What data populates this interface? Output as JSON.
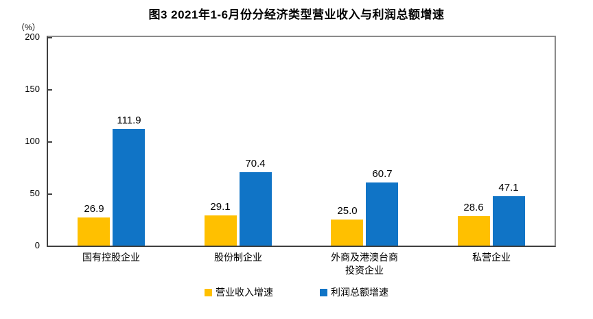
{
  "figure": {
    "title": "图3 2021年1-6月份分经济类型营业收入与利润总额增速",
    "y_unit": "（%）"
  },
  "chart_data": {
    "type": "bar",
    "title": "图3 2021年1-6月份分经济类型营业收入与利润总额增速",
    "ylabel": "（%）",
    "ylim": [
      0,
      200
    ],
    "yticks": [
      0,
      50,
      100,
      150,
      200
    ],
    "grid": false,
    "legend_position": "bottom",
    "categories": [
      "国有控股企业",
      "股份制企业",
      "外商及港澳台商\n投资企业",
      "私营企业"
    ],
    "series": [
      {
        "name": "营业收入增速",
        "color": "#FFC000",
        "values": [
          26.9,
          29.1,
          25.0,
          28.6
        ],
        "labels": [
          "26.9",
          "29.1",
          "25.0",
          "28.6"
        ]
      },
      {
        "name": "利润总额增速",
        "color": "#1074C6",
        "values": [
          111.9,
          70.4,
          60.7,
          47.1
        ],
        "labels": [
          "111.9",
          "70.4",
          "60.7",
          "47.1"
        ]
      }
    ]
  },
  "colors": {
    "axis_dark": "#3f3f3f",
    "frame_gray": "#8a8a8a",
    "text": "#000000"
  }
}
